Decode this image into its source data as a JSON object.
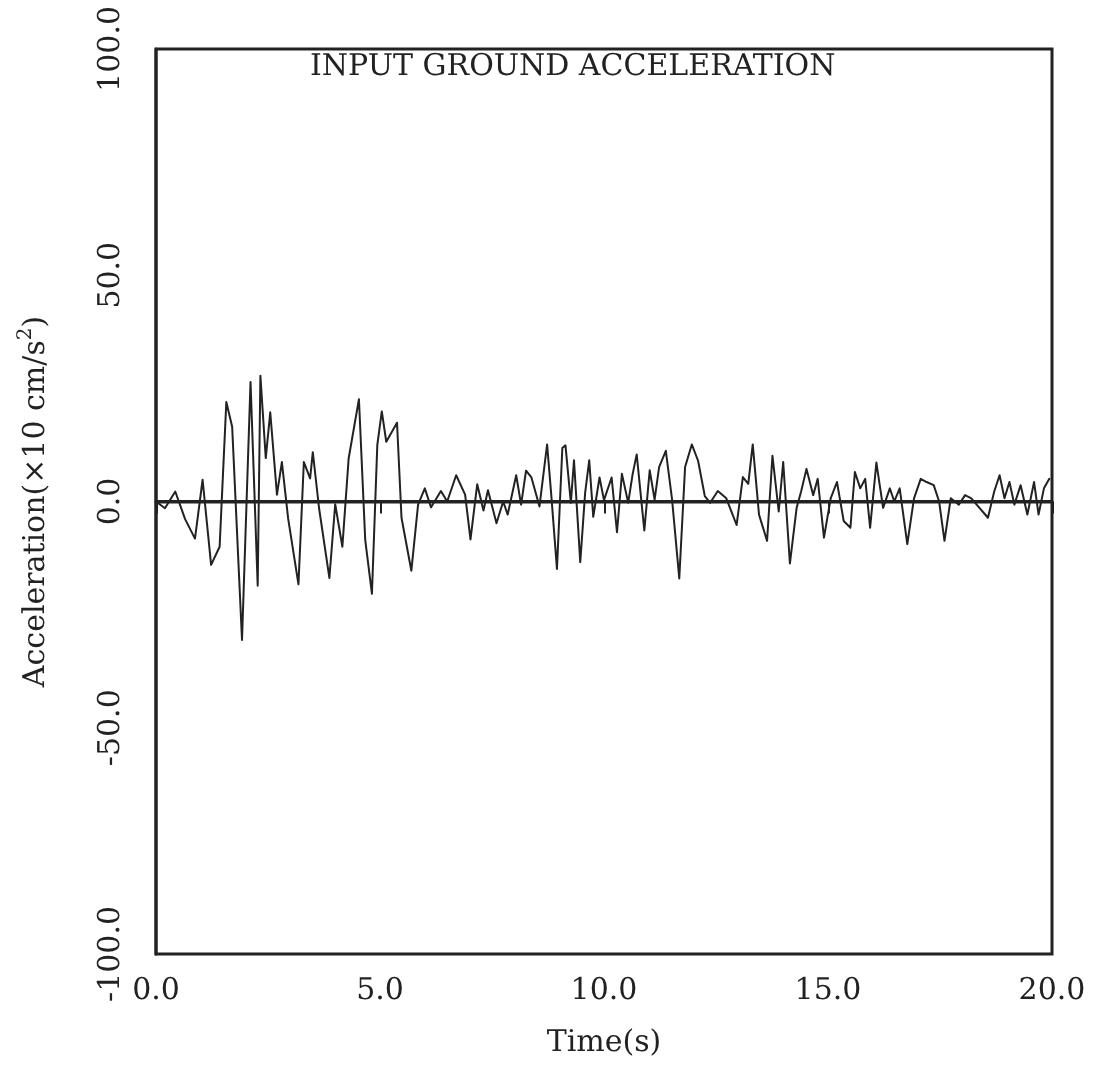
{
  "chart_data": {
    "type": "line",
    "title": "INPUT GROUND ACCELERATION",
    "xlabel": "Time(s)",
    "ylabel": "Acceleration(×10 cm/s$^{2}$)",
    "x": [
      0.0,
      0.2,
      0.43,
      0.65,
      0.87,
      1.04,
      1.23,
      1.42,
      1.57,
      1.7,
      1.92,
      2.11,
      2.27,
      2.33,
      2.45,
      2.55,
      2.7,
      2.81,
      2.95,
      3.18,
      3.3,
      3.44,
      3.5,
      3.64,
      3.87,
      4.0,
      4.16,
      4.3,
      4.53,
      4.67,
      4.82,
      4.94,
      5.04,
      5.14,
      5.26,
      5.38,
      5.48,
      5.7,
      5.85,
      6.0,
      6.14,
      6.36,
      6.5,
      6.7,
      6.9,
      7.02,
      7.17,
      7.31,
      7.41,
      7.6,
      7.75,
      7.85,
      8.04,
      8.15,
      8.26,
      8.38,
      8.56,
      8.73,
      8.82,
      8.95,
      9.07,
      9.14,
      9.26,
      9.33,
      9.47,
      9.58,
      9.67,
      9.76,
      9.9,
      10.0,
      10.17,
      10.29,
      10.4,
      10.54,
      10.64,
      10.73,
      10.9,
      11.02,
      11.13,
      11.23,
      11.38,
      11.52,
      11.68,
      11.81,
      11.96,
      12.1,
      12.25,
      12.37,
      12.54,
      12.73,
      12.96,
      13.1,
      13.22,
      13.32,
      13.46,
      13.64,
      13.76,
      13.9,
      14.0,
      14.15,
      14.3,
      14.4,
      14.52,
      14.67,
      14.77,
      14.91,
      15.06,
      15.2,
      15.35,
      15.5,
      15.6,
      15.72,
      15.83,
      15.94,
      16.08,
      16.23,
      16.38,
      16.48,
      16.6,
      16.77,
      16.92,
      17.07,
      17.2,
      17.36,
      17.48,
      17.6,
      17.74,
      17.92,
      18.06,
      18.2,
      18.38,
      18.57,
      18.71,
      18.83,
      18.94,
      19.05,
      19.16,
      19.3,
      19.45,
      19.6,
      19.7,
      19.82,
      19.94
    ],
    "series": [
      {
        "color": "#222222",
        "values": [
          0.0,
          -1.5,
          2.2,
          -3.9,
          -8.2,
          4.8,
          -14,
          -10,
          22,
          16.5,
          -30.6,
          26.4,
          -18.6,
          27.8,
          9.6,
          19.7,
          1.5,
          8.7,
          -3.8,
          -18.3,
          8.7,
          5.1,
          10.9,
          -1.5,
          -16.9,
          -0.6,
          -10,
          9.5,
          22.6,
          -8.5,
          -20.4,
          12.5,
          19.9,
          13.2,
          15.3,
          17.4,
          -3.6,
          -15.3,
          -0.7,
          2.9,
          -1.3,
          2.3,
          0,
          5.8,
          1.5,
          -8.4,
          3.8,
          -2.0,
          2.5,
          -4.8,
          0,
          -2.9,
          5.8,
          -0.7,
          6.8,
          5.3,
          -1.1,
          12.6,
          1.8,
          -14.9,
          11.8,
          12.4,
          -0.3,
          9.1,
          -13.4,
          2.0,
          9.1,
          -3.4,
          5.3,
          0.3,
          5.3,
          -6.8,
          6.1,
          -0.3,
          6.1,
          10.4,
          -6.4,
          6.9,
          0.4,
          7.6,
          11.2,
          0.4,
          -17,
          7.6,
          12.6,
          9,
          1.2,
          -0.3,
          2.3,
          0.7,
          -5.2,
          5.4,
          3.9,
          12.6,
          -2.9,
          -8.7,
          10.1,
          -2.2,
          8.7,
          -13.7,
          -1.4,
          2.2,
          7.2,
          1.4,
          5.0,
          -8.0,
          0.7,
          4.3,
          -4.3,
          -5.8,
          6.5,
          2.9,
          5.0,
          -5.8,
          8.6,
          -1.4,
          2.9,
          0,
          2.9,
          -9.4,
          0.7,
          5.0,
          4.3,
          3.6,
          0,
          -8.7,
          0.7,
          -0.7,
          1.4,
          0.7,
          -1.4,
          -3.6,
          2.2,
          5.8,
          0.7,
          4.3,
          -0.7,
          3.6,
          -2.9,
          4.3,
          -2.9,
          2.9,
          5.0
        ]
      }
    ],
    "xlim": [
      0,
      20
    ],
    "xticks": [
      {
        "value": 0,
        "label": "0.0"
      },
      {
        "value": 5,
        "label": "5.0"
      },
      {
        "value": 10,
        "label": "10.0"
      },
      {
        "value": 15,
        "label": "15.0"
      },
      {
        "value": 20,
        "label": "20.0"
      }
    ],
    "ylim": [
      -100,
      100
    ],
    "yticks": [
      {
        "value": -100,
        "label": "-100.0"
      },
      {
        "value": -50,
        "label": "-50.0"
      },
      {
        "value": 0,
        "label": "0.0"
      },
      {
        "value": 50,
        "label": "50.0"
      },
      {
        "value": 100,
        "label": "100.0"
      }
    ],
    "ref_lines": [
      {
        "axis": "y",
        "value": 0,
        "color": "#222222",
        "line_style": "solid"
      }
    ],
    "grid": false,
    "marker": "none",
    "line_style": "solid"
  }
}
